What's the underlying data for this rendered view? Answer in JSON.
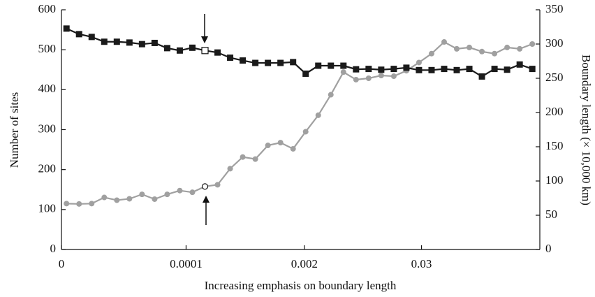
{
  "chart_data": {
    "type": "line",
    "x_label": "Increasing emphasis on boundary length",
    "y_label": "Number of sites",
    "y2_label": "Boundary length (× 10,000 km)",
    "x": [
      0.4,
      1.4,
      2.4,
      3.4,
      4.4,
      5.4,
      6.4,
      7.4,
      8.4,
      9.4,
      10.4,
      11.4,
      12.4,
      13.4,
      14.4,
      15.4,
      16.4,
      17.4,
      18.4,
      19.4,
      20.4,
      21.4,
      22.4,
      23.4,
      24.4,
      25.4,
      26.4,
      27.4,
      28.4,
      29.4,
      30.4,
      31.4,
      32.4,
      33.4,
      34.4,
      35.4,
      36.4,
      37.4
    ],
    "xlim": [
      0,
      38
    ],
    "xticks": [
      {
        "value": 0,
        "label": "0"
      },
      {
        "value": 9.9,
        "label": "0.0001"
      },
      {
        "value": 19.3,
        "label": "0.002"
      },
      {
        "value": 28.6,
        "label": "0.03"
      }
    ],
    "ylim": [
      0,
      600
    ],
    "yticks": [
      0,
      100,
      200,
      300,
      400,
      500,
      600
    ],
    "y2lim": [
      0,
      350
    ],
    "y2ticks": [
      0,
      50,
      100,
      150,
      200,
      250,
      300,
      350
    ],
    "series": [
      {
        "name": "Boundary length",
        "axis": "y2",
        "color": "#a0a0a0",
        "marker": "circle",
        "open_markers": [
          11
        ],
        "values": [
          67,
          66.5,
          67,
          76,
          72,
          74,
          80.5,
          73.5,
          80.5,
          86,
          83.5,
          92,
          94.5,
          118,
          135,
          132,
          152,
          156,
          147,
          172,
          196,
          226,
          259,
          248,
          250,
          254,
          253,
          261,
          273,
          286,
          303,
          293,
          295,
          289,
          286,
          295,
          293,
          300
        ]
      },
      {
        "name": "Number of sites",
        "color": "#1a1a1a",
        "marker": "square",
        "open_markers": [
          11
        ],
        "values": [
          553,
          539,
          532,
          520,
          520,
          518,
          514,
          517,
          504,
          498,
          505,
          498,
          493,
          480,
          473,
          467,
          467,
          467,
          469,
          440,
          460,
          460,
          460,
          451,
          452,
          450,
          452,
          455,
          449,
          449,
          452,
          449,
          452,
          433,
          452,
          450,
          463,
          452
        ]
      }
    ]
  }
}
